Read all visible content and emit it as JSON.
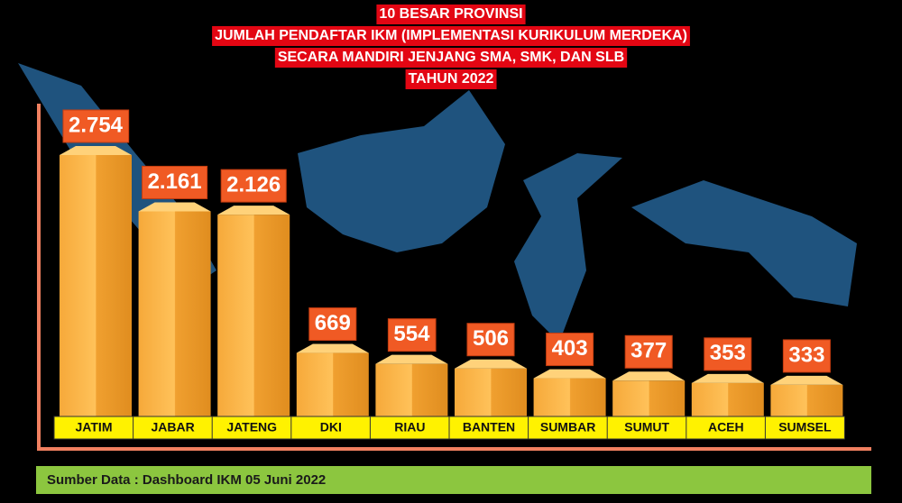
{
  "chart_data": {
    "type": "bar",
    "title": [
      "10 BESAR PROVINSI",
      "JUMLAH PENDAFTAR IKM (IMPLEMENTASI KURIKULUM MERDEKA)",
      "SECARA MANDIRI JENJANG SMA, SMK, DAN SLB",
      "TAHUN 2022"
    ],
    "categories": [
      "JATIM",
      "JABAR",
      "JATENG",
      "DKI",
      "RIAU",
      "BANTEN",
      "SUMBAR",
      "SUMUT",
      "ACEH",
      "SUMSEL"
    ],
    "values": [
      2754,
      2161,
      2126,
      669,
      554,
      506,
      403,
      377,
      353,
      333
    ],
    "value_labels": [
      "2.754",
      "2.161",
      "2.126",
      "669",
      "554",
      "506",
      "403",
      "377",
      "353",
      "333"
    ],
    "color": "#f5a623",
    "source": "Sumber Data : Dashboard IKM 05 Juni 2022"
  }
}
